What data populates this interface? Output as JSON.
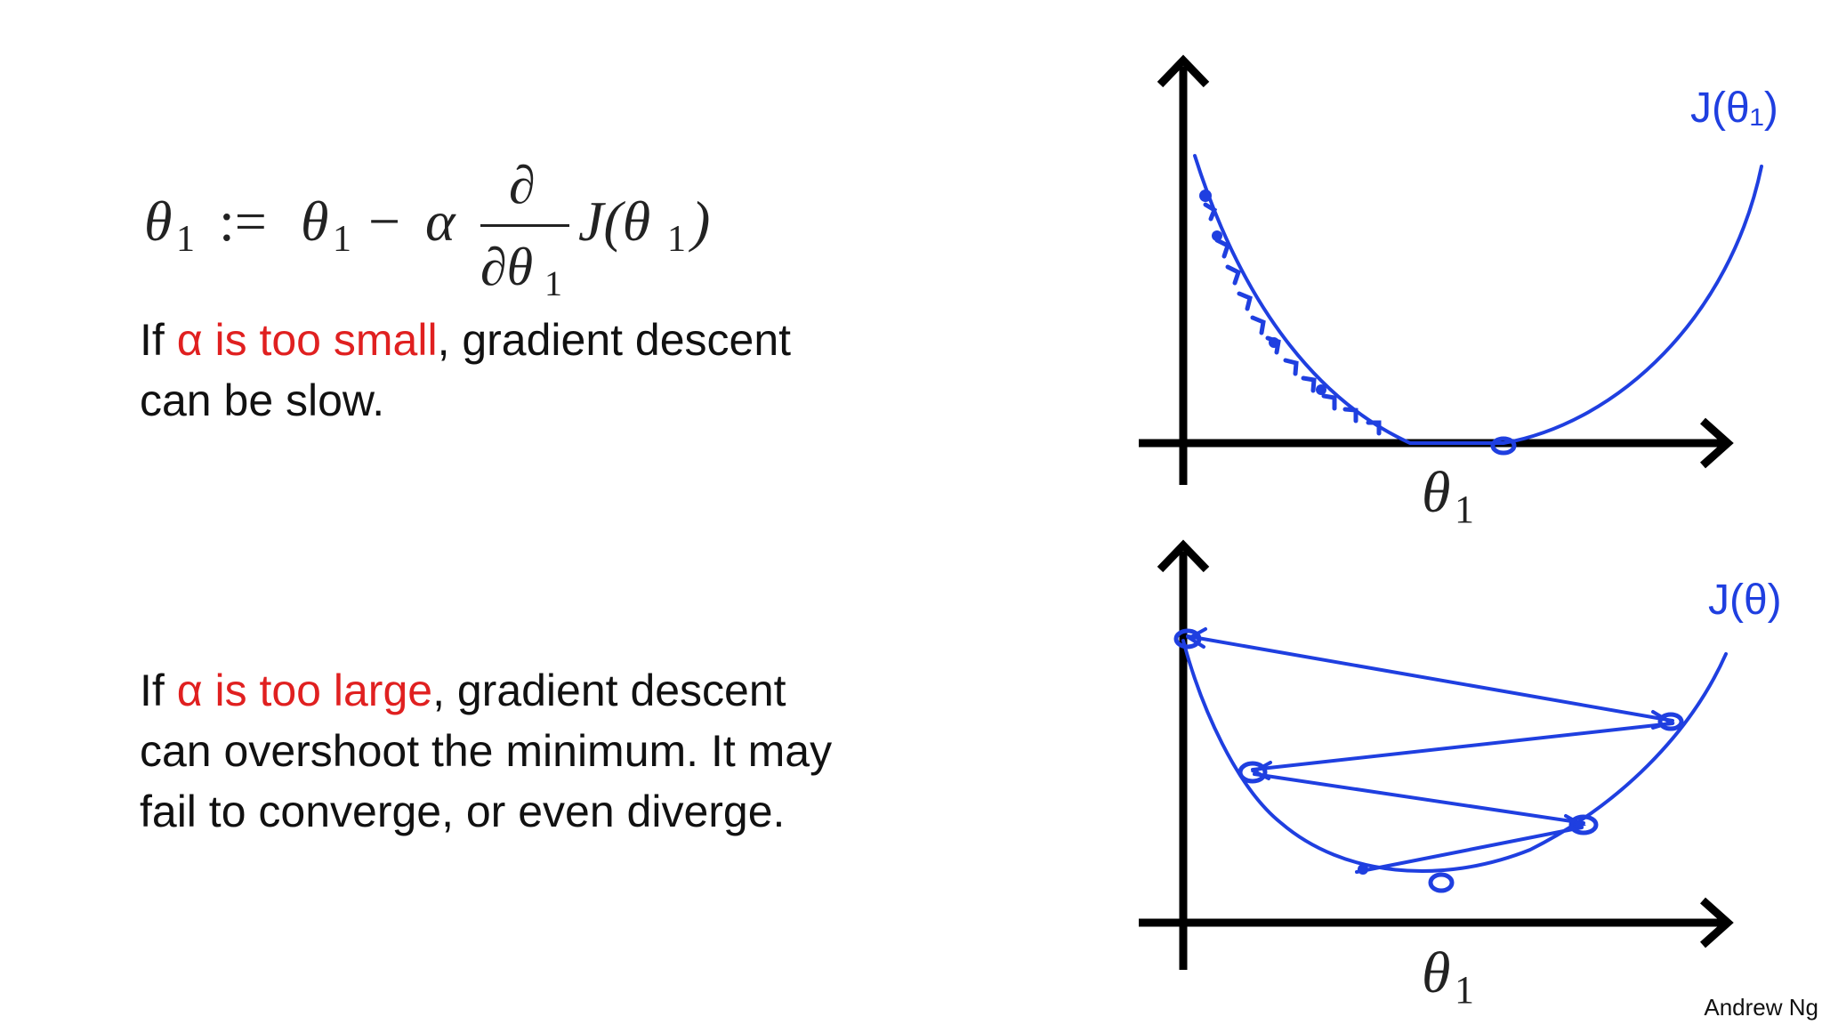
{
  "equation": {
    "lhs": "θ",
    "lhs_sub": "1",
    "assign": ":=",
    "theta": "θ",
    "theta_sub": "1",
    "minus": "−",
    "alpha": "α",
    "partial_num": "∂",
    "partial_den": "∂θ",
    "partial_den_sub": "1",
    "cost": "J(θ",
    "cost_sub": "1",
    "cost_close": ")"
  },
  "small_case": {
    "prefix": "If ",
    "highlight": "α is too small",
    "rest": ", gradient descent",
    "line2": "can be slow."
  },
  "large_case": {
    "prefix": "If ",
    "highlight": "α is too large",
    "rest": ", gradient descent",
    "line2": "can overshoot the minimum. It may",
    "line3": "fail to converge, or even diverge."
  },
  "plot_small": {
    "curve_label": "J(θ₁)",
    "axis_label": "θ",
    "axis_label_sub": "1"
  },
  "plot_large": {
    "curve_label": "J(θ)",
    "axis_label": "θ",
    "axis_label_sub": "1"
  },
  "credit": "Andrew Ng",
  "colors": {
    "highlight": "#e02020",
    "sketch": "#1f3fe0",
    "text": "#111111"
  }
}
